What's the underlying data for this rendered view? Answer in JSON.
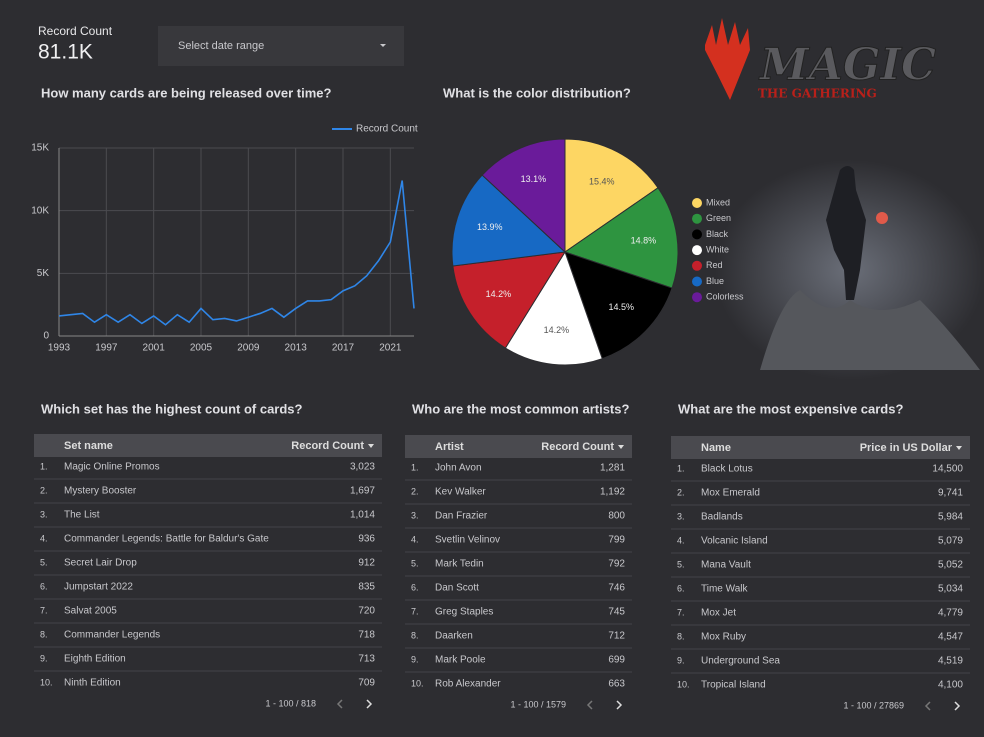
{
  "scorecard": {
    "label": "Record Count",
    "value": "81.1K"
  },
  "date_filter": "Select date range",
  "logo": {
    "title": "MAGIC",
    "subtitle": "THE GATHERING"
  },
  "chart_data": [
    {
      "type": "line",
      "title": "How many cards are being released over time?",
      "x": [
        1993,
        1994,
        1995,
        1996,
        1997,
        1998,
        1999,
        2000,
        2001,
        2002,
        2003,
        2004,
        2005,
        2006,
        2007,
        2008,
        2009,
        2010,
        2011,
        2012,
        2013,
        2014,
        2015,
        2016,
        2017,
        2018,
        2019,
        2020,
        2021,
        2022,
        2023
      ],
      "series": [
        {
          "name": "Record Count",
          "color": "#2f86e8",
          "values": [
            1600,
            1700,
            1800,
            1100,
            1700,
            1100,
            1700,
            1000,
            1600,
            900,
            1700,
            1100,
            2200,
            1300,
            1400,
            1200,
            1500,
            1800,
            2200,
            1500,
            2200,
            2800,
            2800,
            2900,
            3600,
            4000,
            4800,
            6000,
            7500,
            12400,
            2200
          ]
        }
      ],
      "xlim": [
        1993,
        2023
      ],
      "xticks": [
        1993,
        1997,
        2001,
        2005,
        2009,
        2013,
        2017,
        2021
      ],
      "ylim": [
        0,
        15000
      ],
      "yticks": [
        0,
        {
          "value": 5000,
          "label": "5K"
        },
        {
          "value": 10000,
          "label": "10K"
        },
        {
          "value": 15000,
          "label": "15K"
        }
      ],
      "grid": true
    },
    {
      "type": "pie",
      "title": "What is the color distribution?",
      "categories": [
        "Mixed",
        "Green",
        "Black",
        "White",
        "Red",
        "Blue",
        "Colorless"
      ],
      "values": [
        15.4,
        14.8,
        14.5,
        14.2,
        14.2,
        13.9,
        13.1
      ],
      "value_labels": [
        "15.4%",
        "14.8%",
        "14.5%",
        "14.2%",
        "14.2%",
        "13.9%",
        "13.1%"
      ],
      "colors": [
        "#fdd663",
        "#2e9440",
        "#000000",
        "#ffffff",
        "#c5202b",
        "#1769c4",
        "#6a1b9a"
      ]
    }
  ],
  "tables": [
    {
      "title": "Which set has the highest count of cards?",
      "columns": [
        "Set name",
        "Record Count"
      ],
      "rows": [
        [
          "1.",
          "Magic Online Promos",
          "3,023"
        ],
        [
          "2.",
          "Mystery Booster",
          "1,697"
        ],
        [
          "3.",
          "The List",
          "1,014"
        ],
        [
          "4.",
          "Commander Legends: Battle for Baldur's Gate",
          "936"
        ],
        [
          "5.",
          "Secret Lair Drop",
          "912"
        ],
        [
          "6.",
          "Jumpstart 2022",
          "835"
        ],
        [
          "7.",
          "Salvat 2005",
          "720"
        ],
        [
          "8.",
          "Commander Legends",
          "718"
        ],
        [
          "9.",
          "Eighth Edition",
          "713"
        ],
        [
          "10.",
          "Ninth Edition",
          "709"
        ]
      ],
      "pagination": "1 - 100 / 818"
    },
    {
      "title": "Who are the most common artists?",
      "columns": [
        "Artist",
        "Record Count"
      ],
      "rows": [
        [
          "1.",
          "John Avon",
          "1,281"
        ],
        [
          "2.",
          "Kev Walker",
          "1,192"
        ],
        [
          "3.",
          "Dan Frazier",
          "800"
        ],
        [
          "4.",
          "Svetlin Velinov",
          "799"
        ],
        [
          "5.",
          "Mark Tedin",
          "792"
        ],
        [
          "6.",
          "Dan Scott",
          "746"
        ],
        [
          "7.",
          "Greg Staples",
          "745"
        ],
        [
          "8.",
          "Daarken",
          "712"
        ],
        [
          "9.",
          "Mark Poole",
          "699"
        ],
        [
          "10.",
          "Rob Alexander",
          "663"
        ]
      ],
      "pagination": "1 - 100 / 1579"
    },
    {
      "title": "What are the most expensive cards?",
      "columns": [
        "Name",
        "Price in US Dollar"
      ],
      "rows": [
        [
          "1.",
          "Black Lotus",
          "14,500"
        ],
        [
          "2.",
          "Mox Emerald",
          "9,741"
        ],
        [
          "3.",
          "Badlands",
          "5,984"
        ],
        [
          "4.",
          "Volcanic Island",
          "5,079"
        ],
        [
          "5.",
          "Mana Vault",
          "5,052"
        ],
        [
          "6.",
          "Time Walk",
          "5,034"
        ],
        [
          "7.",
          "Mox Jet",
          "4,779"
        ],
        [
          "8.",
          "Mox Ruby",
          "4,547"
        ],
        [
          "9.",
          "Underground Sea",
          "4,519"
        ],
        [
          "10.",
          "Tropical Island",
          "4,100"
        ]
      ],
      "pagination": "1 - 100 / 27869"
    }
  ]
}
